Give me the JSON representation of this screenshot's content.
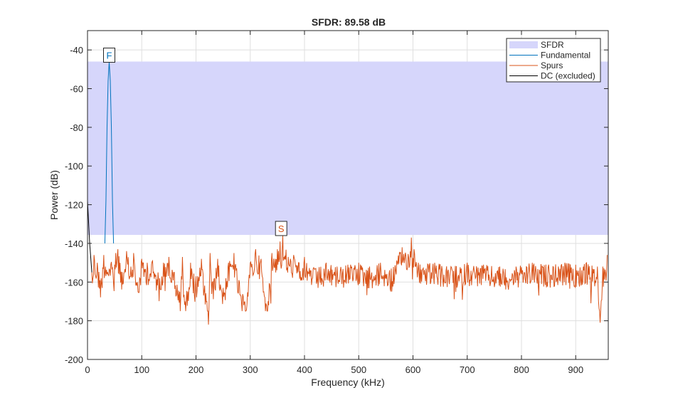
{
  "chart_data": {
    "type": "line",
    "title": "SFDR:  89.58 dB",
    "xlabel": "Frequency (kHz)",
    "ylabel": "Power (dB)",
    "xlim": [
      0,
      960
    ],
    "ylim": [
      -200,
      -30
    ],
    "xticks": [
      0,
      100,
      200,
      300,
      400,
      500,
      600,
      700,
      800,
      900
    ],
    "yticks": [
      -200,
      -180,
      -160,
      -140,
      -120,
      -100,
      -80,
      -60,
      -40
    ],
    "grid": true,
    "legend_position": "top-right",
    "sfdr_band": {
      "top": -46,
      "bottom": -135.6
    },
    "series": [
      {
        "name": "SFDR",
        "kind": "band",
        "color": "#d6d6fb"
      },
      {
        "name": "Fundamental",
        "color": "#0072bd",
        "x": [
          32,
          34,
          36,
          38,
          40,
          42,
          44,
          46,
          48
        ],
        "y": [
          -140,
          -118,
          -80,
          -56,
          -46,
          -56,
          -80,
          -118,
          -140
        ]
      },
      {
        "name": "Spurs",
        "color": "#d95319",
        "generate": "noise_floor",
        "x": [
          8,
          12,
          18,
          25,
          30,
          50,
          52,
          56,
          60,
          68,
          72,
          80,
          85,
          92,
          100,
          110,
          120,
          130,
          140,
          150,
          160,
          170,
          175,
          180,
          190,
          200,
          210,
          220,
          223,
          226,
          230,
          240,
          250,
          260,
          270,
          280,
          290,
          300,
          310,
          320,
          330,
          340,
          350,
          355,
          360,
          370,
          380,
          390,
          400,
          420,
          440,
          460,
          480,
          500,
          520,
          540,
          560,
          580,
          597,
          610,
          640,
          670,
          700,
          730,
          760,
          790,
          820,
          850,
          880,
          900,
          920,
          940,
          945,
          950,
          958
        ],
        "y": [
          -155,
          -146,
          -150,
          -158,
          -146,
          -151,
          -145,
          -143,
          -150,
          -155,
          -144,
          -152,
          -145,
          -160,
          -148,
          -150,
          -149,
          -155,
          -150,
          -147,
          -155,
          -165,
          -147,
          -170,
          -150,
          -157,
          -148,
          -170,
          -182,
          -145,
          -160,
          -148,
          -163,
          -150,
          -145,
          -160,
          -170,
          -150,
          -143,
          -148,
          -172,
          -145,
          -143,
          -139,
          -136,
          -147,
          -146,
          -150,
          -147,
          -153,
          -150,
          -152,
          -151,
          -150,
          -152,
          -150,
          -153,
          -142,
          -137,
          -150,
          -150,
          -152,
          -150,
          -151,
          -152,
          -152,
          -150,
          -151,
          -150,
          -151,
          -150,
          -152,
          -181,
          -152,
          -146
        ]
      },
      {
        "name": "DC (excluded)",
        "color": "#000000",
        "x": [
          0,
          4,
          8
        ],
        "y": [
          -118,
          -140,
          -155
        ]
      }
    ],
    "markers": [
      {
        "label": "F",
        "x": 40,
        "y": -46,
        "color": "#0072bd"
      },
      {
        "label": "S",
        "x": 357,
        "y": -135.6,
        "color": "#d95319"
      }
    ]
  }
}
